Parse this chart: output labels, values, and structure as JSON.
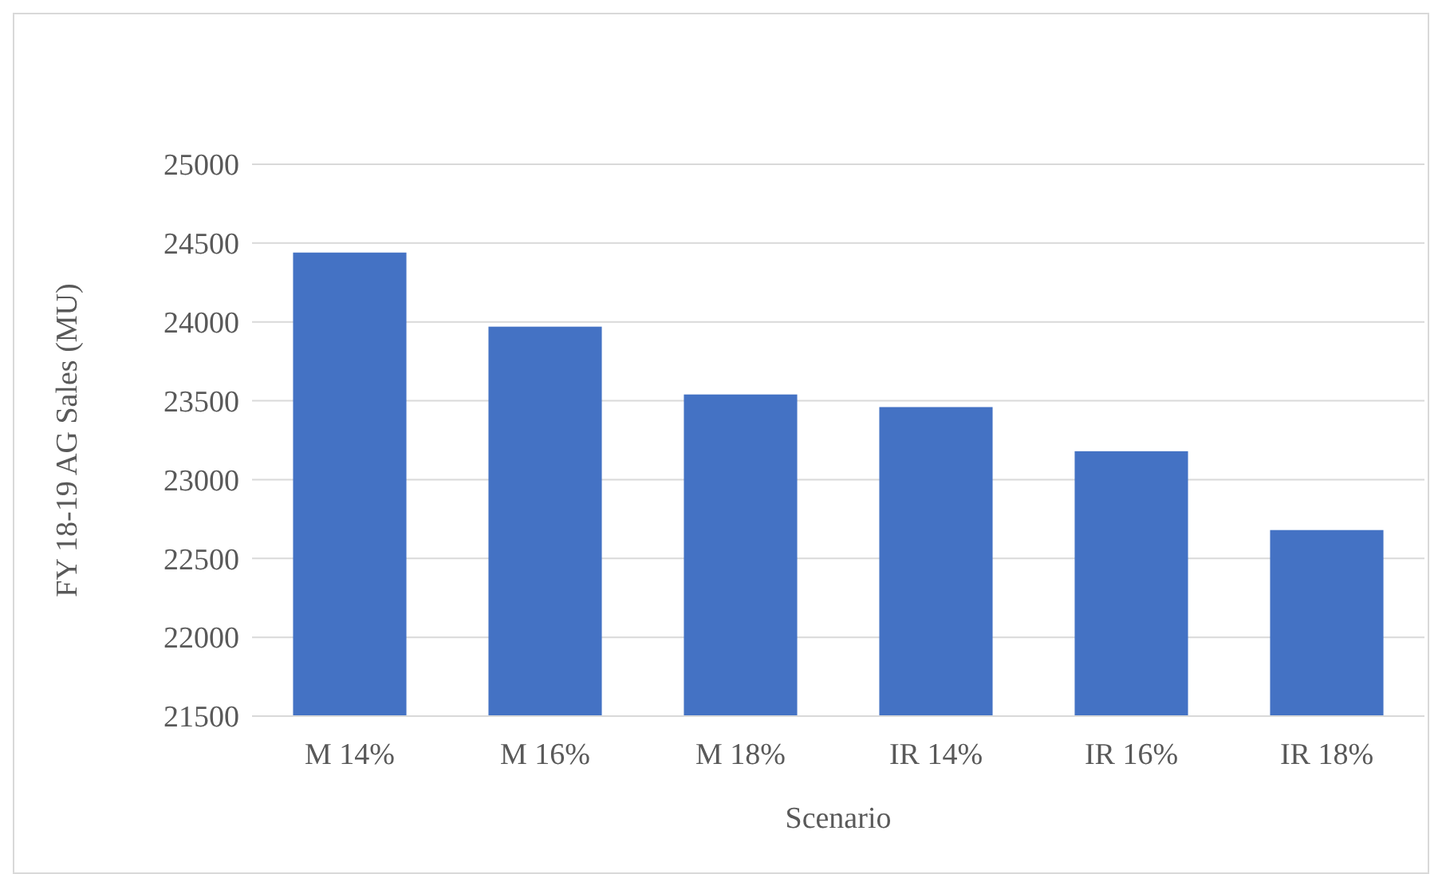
{
  "chart_data": {
    "type": "bar",
    "xlabel": "Scenario",
    "ylabel": "FY 18-19 AG Sales (MU)",
    "categories": [
      "M 14%",
      "M 16%",
      "M 18%",
      "IR 14%",
      "IR 16%",
      "IR 18%"
    ],
    "values": [
      24440,
      23970,
      23540,
      23460,
      23180,
      22680
    ],
    "color": "#4472c4",
    "ylim": [
      21500,
      25000
    ],
    "yticks": [
      21500,
      22000,
      22500,
      23000,
      23500,
      24000,
      24500,
      25000
    ],
    "grid": "y"
  }
}
